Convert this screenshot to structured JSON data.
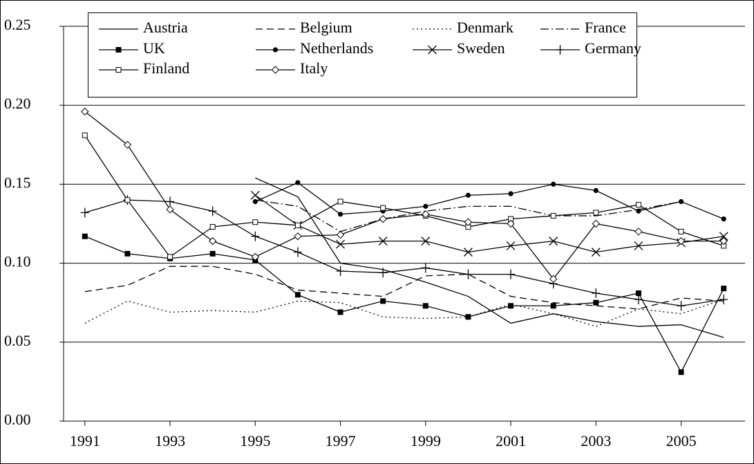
{
  "chart_data": {
    "type": "line",
    "x": [
      1991,
      1992,
      1993,
      1994,
      1995,
      1996,
      1997,
      1998,
      1999,
      2000,
      2001,
      2002,
      2003,
      2004,
      2005,
      2006
    ],
    "xlim": [
      1990.5,
      2006.5
    ],
    "xticks": [
      1991,
      1993,
      1995,
      1997,
      1999,
      2001,
      2003,
      2005
    ],
    "ylim": [
      0,
      0.25
    ],
    "yticks": [
      {
        "value": 0,
        "label": "0.00"
      },
      {
        "value": 0.05,
        "label": "0.05"
      },
      {
        "value": 0.1,
        "label": "0.10"
      },
      {
        "value": 0.15,
        "label": "0.15"
      },
      {
        "value": 0.2,
        "label": "0.20"
      },
      {
        "value": 0.25,
        "label": "0.25"
      }
    ],
    "grid": true,
    "legend": "top",
    "series": [
      {
        "name": "Austria",
        "color": "#000000",
        "dash": "solid",
        "marker": "none",
        "values": [
          null,
          null,
          null,
          null,
          0.154,
          0.142,
          0.1,
          0.096,
          0.088,
          0.079,
          0.062,
          0.068,
          0.063,
          0.06,
          0.061,
          0.053
        ]
      },
      {
        "name": "Belgium",
        "color": "#000000",
        "dash": "dashed",
        "marker": "none",
        "values": [
          0.082,
          0.086,
          0.098,
          0.098,
          0.093,
          0.083,
          0.081,
          0.079,
          0.092,
          0.093,
          0.079,
          0.075,
          0.073,
          0.071,
          0.078,
          0.076
        ]
      },
      {
        "name": "Denmark",
        "color": "#000000",
        "dash": "dotted",
        "marker": "none",
        "values": [
          0.062,
          0.076,
          0.069,
          0.07,
          0.069,
          0.076,
          0.075,
          0.066,
          0.065,
          0.066,
          0.074,
          0.068,
          0.06,
          0.071,
          0.068,
          0.077
        ]
      },
      {
        "name": "France",
        "color": "#000000",
        "dash": "dashdot",
        "marker": "none",
        "values": [
          null,
          null,
          null,
          null,
          0.14,
          0.136,
          0.12,
          0.128,
          0.133,
          0.136,
          0.136,
          0.13,
          0.13,
          0.134,
          0.139,
          null
        ]
      },
      {
        "name": "UK",
        "color": "#000000",
        "dash": "solid",
        "marker": "square",
        "values": [
          0.117,
          0.106,
          0.103,
          0.106,
          0.102,
          0.08,
          0.069,
          0.076,
          0.073,
          0.066,
          0.073,
          0.073,
          0.075,
          0.081,
          0.031,
          0.084
        ]
      },
      {
        "name": "Netherlands",
        "color": "#000000",
        "dash": "solid",
        "marker": "circle",
        "values": [
          null,
          null,
          null,
          null,
          0.139,
          0.151,
          0.131,
          0.133,
          0.136,
          0.143,
          0.144,
          0.15,
          0.146,
          0.133,
          0.139,
          0.128
        ]
      },
      {
        "name": "Sweden",
        "color": "#000000",
        "dash": "solid",
        "marker": "x",
        "values": [
          null,
          null,
          null,
          null,
          0.143,
          0.124,
          0.112,
          0.114,
          0.114,
          0.107,
          0.111,
          0.114,
          0.107,
          0.111,
          0.113,
          0.117
        ]
      },
      {
        "name": "Germany",
        "color": "#000000",
        "dash": "solid",
        "marker": "plus",
        "values": [
          0.132,
          0.14,
          0.139,
          0.133,
          0.117,
          0.107,
          0.095,
          0.094,
          0.097,
          0.093,
          0.093,
          0.087,
          0.081,
          0.077,
          0.073,
          0.077
        ]
      },
      {
        "name": "Finland",
        "color": "#000000",
        "dash": "solid",
        "marker": "open-square",
        "values": [
          0.181,
          0.14,
          0.104,
          0.123,
          0.126,
          0.124,
          0.139,
          0.135,
          0.13,
          0.123,
          0.128,
          0.13,
          0.132,
          0.137,
          0.12,
          0.111
        ]
      },
      {
        "name": "Italy",
        "color": "#000000",
        "dash": "solid",
        "marker": "open-diamond",
        "values": [
          0.196,
          0.175,
          0.134,
          0.114,
          0.104,
          0.117,
          0.118,
          0.128,
          0.131,
          0.126,
          0.125,
          0.09,
          0.125,
          0.12,
          0.114,
          0.114
        ]
      }
    ]
  }
}
